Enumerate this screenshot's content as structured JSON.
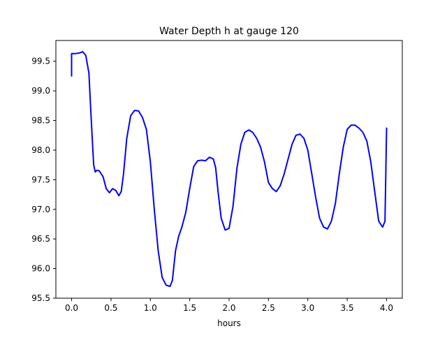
{
  "chart_data": {
    "type": "line",
    "title": "Water Depth h at gauge 120",
    "xlabel": "hours",
    "ylabel": "",
    "xlim": [
      -0.2,
      4.2
    ],
    "ylim": [
      95.5,
      99.85
    ],
    "xticks": [
      0.0,
      0.5,
      1.0,
      1.5,
      2.0,
      2.5,
      3.0,
      3.5,
      4.0
    ],
    "xtick_labels": [
      "0.0",
      "0.5",
      "1.0",
      "1.5",
      "2.0",
      "2.5",
      "3.0",
      "3.5",
      "4.0"
    ],
    "yticks": [
      95.5,
      96.0,
      96.5,
      97.0,
      97.5,
      98.0,
      98.5,
      99.0,
      99.5
    ],
    "ytick_labels": [
      "95.5",
      "96.0",
      "96.5",
      "97.0",
      "97.5",
      "98.0",
      "98.5",
      "99.0",
      "99.5"
    ],
    "grid": false,
    "legend": "none",
    "series": [
      {
        "color": "#0000ff",
        "x": [
          0.0,
          0.0,
          0.05,
          0.1,
          0.14,
          0.18,
          0.22,
          0.25,
          0.28,
          0.3,
          0.32,
          0.35,
          0.4,
          0.44,
          0.48,
          0.52,
          0.56,
          0.6,
          0.63,
          0.66,
          0.7,
          0.75,
          0.8,
          0.85,
          0.9,
          0.95,
          1.0,
          1.05,
          1.1,
          1.15,
          1.2,
          1.25,
          1.28,
          1.32,
          1.36,
          1.4,
          1.45,
          1.5,
          1.55,
          1.6,
          1.65,
          1.7,
          1.75,
          1.8,
          1.83,
          1.86,
          1.9,
          1.95,
          2.0,
          2.05,
          2.1,
          2.15,
          2.2,
          2.25,
          2.3,
          2.35,
          2.4,
          2.45,
          2.5,
          2.55,
          2.6,
          2.65,
          2.7,
          2.75,
          2.8,
          2.85,
          2.9,
          2.95,
          3.0,
          3.05,
          3.1,
          3.15,
          3.2,
          3.25,
          3.3,
          3.35,
          3.4,
          3.45,
          3.5,
          3.55,
          3.6,
          3.65,
          3.7,
          3.75,
          3.8,
          3.85,
          3.9,
          3.95,
          3.98,
          4.0
        ],
        "y": [
          99.25,
          99.63,
          99.63,
          99.64,
          99.66,
          99.6,
          99.3,
          98.5,
          97.75,
          97.63,
          97.66,
          97.65,
          97.55,
          97.35,
          97.28,
          97.35,
          97.32,
          97.23,
          97.3,
          97.6,
          98.2,
          98.58,
          98.67,
          98.66,
          98.55,
          98.35,
          97.8,
          97.0,
          96.3,
          95.85,
          95.72,
          95.7,
          95.8,
          96.3,
          96.55,
          96.7,
          96.95,
          97.35,
          97.72,
          97.82,
          97.83,
          97.82,
          97.88,
          97.85,
          97.7,
          97.3,
          96.85,
          96.65,
          96.68,
          97.05,
          97.7,
          98.1,
          98.3,
          98.34,
          98.3,
          98.2,
          98.05,
          97.8,
          97.45,
          97.35,
          97.3,
          97.4,
          97.6,
          97.85,
          98.1,
          98.25,
          98.27,
          98.2,
          98.0,
          97.6,
          97.2,
          96.85,
          96.7,
          96.67,
          96.8,
          97.1,
          97.6,
          98.05,
          98.35,
          98.42,
          98.42,
          98.37,
          98.3,
          98.15,
          97.8,
          97.3,
          96.8,
          96.7,
          96.8,
          98.37
        ]
      }
    ]
  }
}
